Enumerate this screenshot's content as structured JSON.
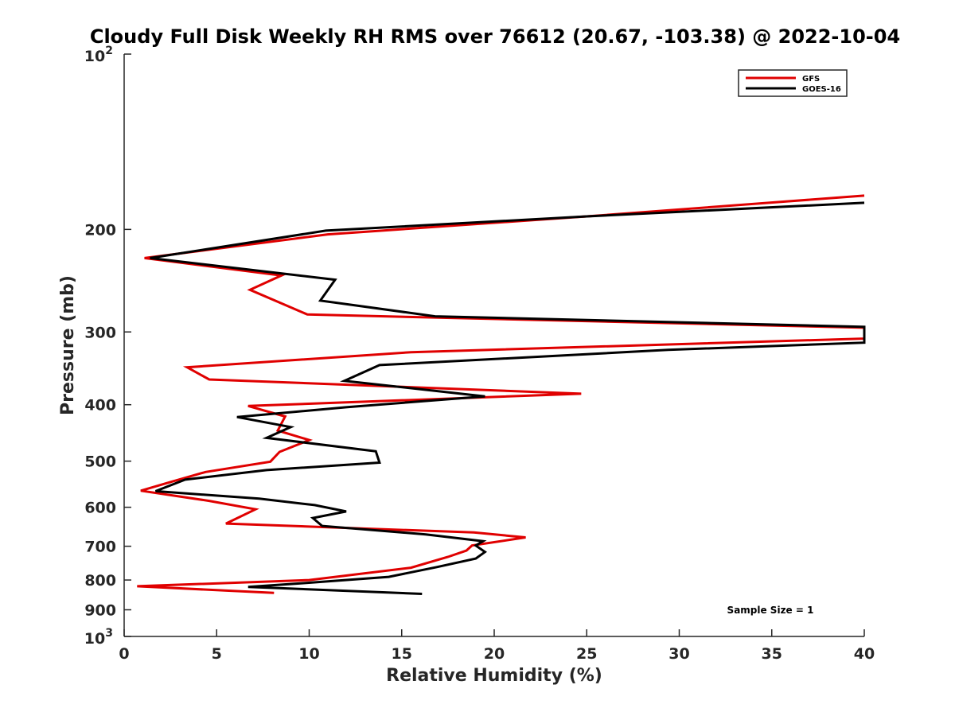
{
  "chart_data": {
    "type": "line",
    "title": "Cloudy Full Disk Weekly RH RMS over 76612 (20.67, -103.38) @ 2022-10-04",
    "xlabel": "Relative Humidity (%)",
    "ylabel": "Pressure (mb)",
    "xlim": [
      0,
      40
    ],
    "ylim": [
      100,
      1000
    ],
    "yscale": "log",
    "y_reversed": true,
    "grid": false,
    "x_ticks": [
      {
        "value": 0,
        "label": "0"
      },
      {
        "value": 5,
        "label": "5"
      },
      {
        "value": 10,
        "label": "10"
      },
      {
        "value": 15,
        "label": "15"
      },
      {
        "value": 20,
        "label": "20"
      },
      {
        "value": 25,
        "label": "25"
      },
      {
        "value": 30,
        "label": "30"
      },
      {
        "value": 35,
        "label": "35"
      },
      {
        "value": 40,
        "label": "40"
      }
    ],
    "y_ticks": [
      {
        "value": 100,
        "base": "10",
        "exp": "2"
      },
      {
        "value": 200,
        "label": "200"
      },
      {
        "value": 300,
        "label": "300"
      },
      {
        "value": 400,
        "label": "400"
      },
      {
        "value": 500,
        "label": "500"
      },
      {
        "value": 600,
        "label": "600"
      },
      {
        "value": 700,
        "label": "700"
      },
      {
        "value": 800,
        "label": "800"
      },
      {
        "value": 900,
        "label": "900"
      },
      {
        "value": 1000,
        "base": "10",
        "exp": "3"
      }
    ],
    "legend_position": "top-right",
    "annotation": "Sample Size = 1",
    "series": [
      {
        "name": "GFS",
        "color": "#e00000",
        "points": [
          [
            40,
            175
          ],
          [
            25,
            190
          ],
          [
            11,
            204
          ],
          [
            1.1,
            224
          ],
          [
            8.5,
            240
          ],
          [
            6.8,
            254
          ],
          [
            9.9,
            280
          ],
          [
            40,
            295
          ],
          [
            40,
            308
          ],
          [
            15.5,
            325
          ],
          [
            3.4,
            345
          ],
          [
            4.6,
            362
          ],
          [
            24.7,
            383
          ],
          [
            6.7,
            402
          ],
          [
            8.7,
            419
          ],
          [
            8.3,
            443
          ],
          [
            10.0,
            460
          ],
          [
            8.4,
            482
          ],
          [
            7.9,
            501
          ],
          [
            4.4,
            522
          ],
          [
            2.5,
            543
          ],
          [
            0.9,
            562
          ],
          [
            4.6,
            585
          ],
          [
            7.1,
            605
          ],
          [
            5.5,
            640
          ],
          [
            18.9,
            663
          ],
          [
            21.7,
            676
          ],
          [
            18.8,
            698
          ],
          [
            18.5,
            712
          ],
          [
            17.5,
            730
          ],
          [
            15.5,
            762
          ],
          [
            10.0,
            800
          ],
          [
            0.7,
            820
          ],
          [
            8.1,
            842
          ]
        ]
      },
      {
        "name": "GOES-16",
        "color": "#000000",
        "points": [
          [
            40,
            180
          ],
          [
            25,
            190
          ],
          [
            10.9,
            201
          ],
          [
            1.4,
            224
          ],
          [
            11.4,
            244
          ],
          [
            10.6,
            265
          ],
          [
            16.8,
            282
          ],
          [
            40,
            294
          ],
          [
            40,
            313
          ],
          [
            29.4,
            322
          ],
          [
            13.8,
            342
          ],
          [
            11.9,
            364
          ],
          [
            19.5,
            387
          ],
          [
            12.0,
            404
          ],
          [
            6.1,
            420
          ],
          [
            9.0,
            437
          ],
          [
            7.7,
            456
          ],
          [
            13.6,
            481
          ],
          [
            13.8,
            503
          ],
          [
            7.7,
            518
          ],
          [
            3.3,
            538
          ],
          [
            1.7,
            563
          ],
          [
            7.3,
            580
          ],
          [
            10.3,
            595
          ],
          [
            12.0,
            610
          ],
          [
            10.2,
            626
          ],
          [
            10.7,
            646
          ],
          [
            16.3,
            668
          ],
          [
            19.4,
            686
          ],
          [
            19.0,
            698
          ],
          [
            19.5,
            716
          ],
          [
            19.0,
            735
          ],
          [
            16.9,
            760
          ],
          [
            14.3,
            790
          ],
          [
            9.7,
            810
          ],
          [
            6.7,
            822
          ],
          [
            16.1,
            845
          ]
        ]
      }
    ]
  }
}
